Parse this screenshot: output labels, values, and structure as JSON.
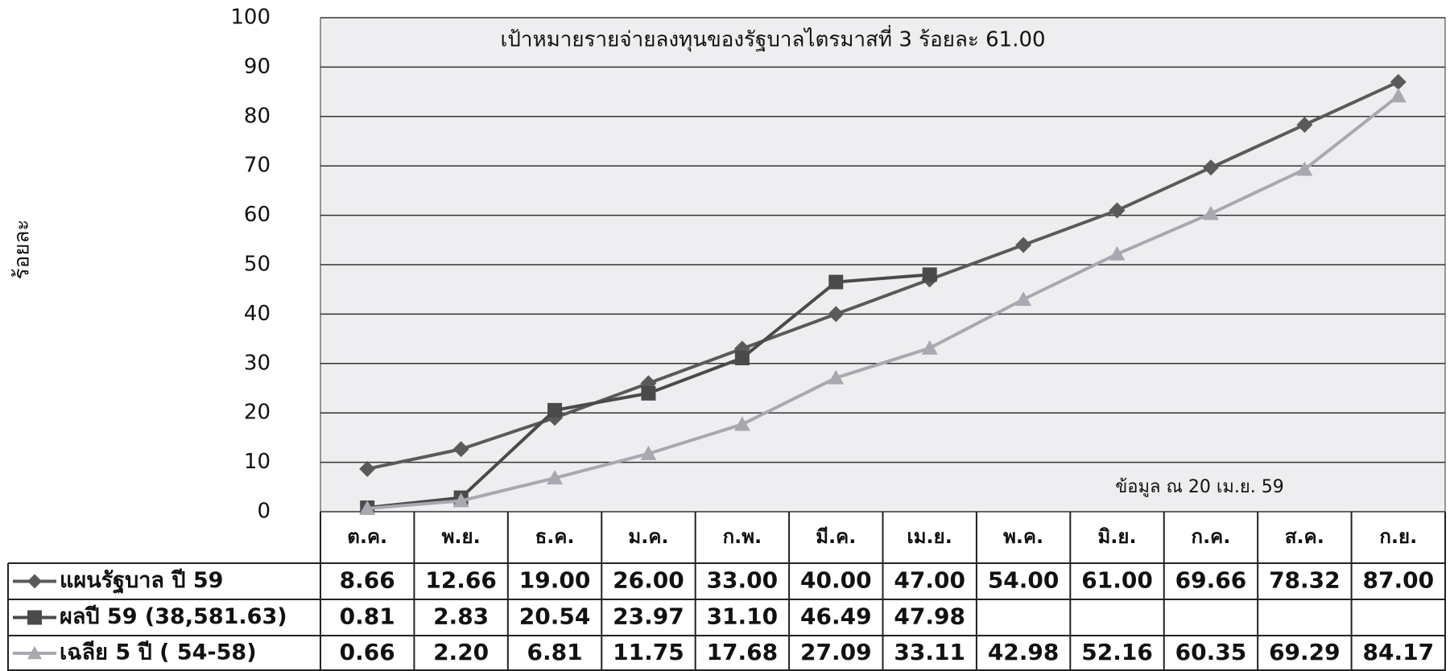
{
  "chart_data": {
    "type": "line",
    "title": "เป้าหมายรายจ่ายลงทุนของรัฐบาลไตรมาสที่  3  ร้อยละ  61.00",
    "annotation": "ข้อมูล ณ  20  เม.ย. 59",
    "y_label": "ร้อยละ",
    "categories": [
      "ต.ค.",
      "พ.ย.",
      "ธ.ค.",
      "ม.ค.",
      "ก.พ.",
      "มี.ค.",
      "เม.ย.",
      "พ.ค.",
      "มิ.ย.",
      "ก.ค.",
      "ส.ค.",
      "ก.ย."
    ],
    "ylim": [
      0,
      100
    ],
    "yticks": [
      0,
      10,
      20,
      30,
      40,
      50,
      60,
      70,
      80,
      90,
      100
    ],
    "grid": true,
    "series": [
      {
        "name": "แผนรัฐบาล ปี 59",
        "color": "#5a5a5a",
        "marker": "diamond",
        "values": [
          8.66,
          12.66,
          19,
          26,
          33,
          40,
          47,
          54,
          61,
          69.66,
          78.32,
          87
        ],
        "value_labels": [
          "8.66",
          "12.66",
          "19.00",
          "26.00",
          "33.00",
          "40.00",
          "47.00",
          "54.00",
          "61.00",
          "69.66",
          "78.32",
          "87.00"
        ]
      },
      {
        "name": "ผลปี 59 (38,581.63)",
        "color": "#4a4a4a",
        "marker": "square",
        "values": [
          0.81,
          2.83,
          20.54,
          23.97,
          31.1,
          46.49,
          47.98,
          null,
          null,
          null,
          null,
          null
        ],
        "value_labels": [
          "0.81",
          "2.83",
          "20.54",
          "23.97",
          "31.10",
          "46.49",
          "47.98",
          null,
          null,
          null,
          null,
          null
        ]
      },
      {
        "name": "เฉลีย 5  ปี  ( 54-58)",
        "color": "#a8a8b0",
        "marker": "triangle",
        "values": [
          0.66,
          2.2,
          6.81,
          11.75,
          17.68,
          27.09,
          33.11,
          42.98,
          52.16,
          60.35,
          69.29,
          84.17
        ],
        "value_labels": [
          "0.66",
          "2.20",
          "6.81",
          "11.75",
          "17.68",
          "27.09",
          "33.11",
          "42.98",
          "52.16",
          "60.35",
          "69.29",
          "84.17"
        ]
      }
    ]
  }
}
